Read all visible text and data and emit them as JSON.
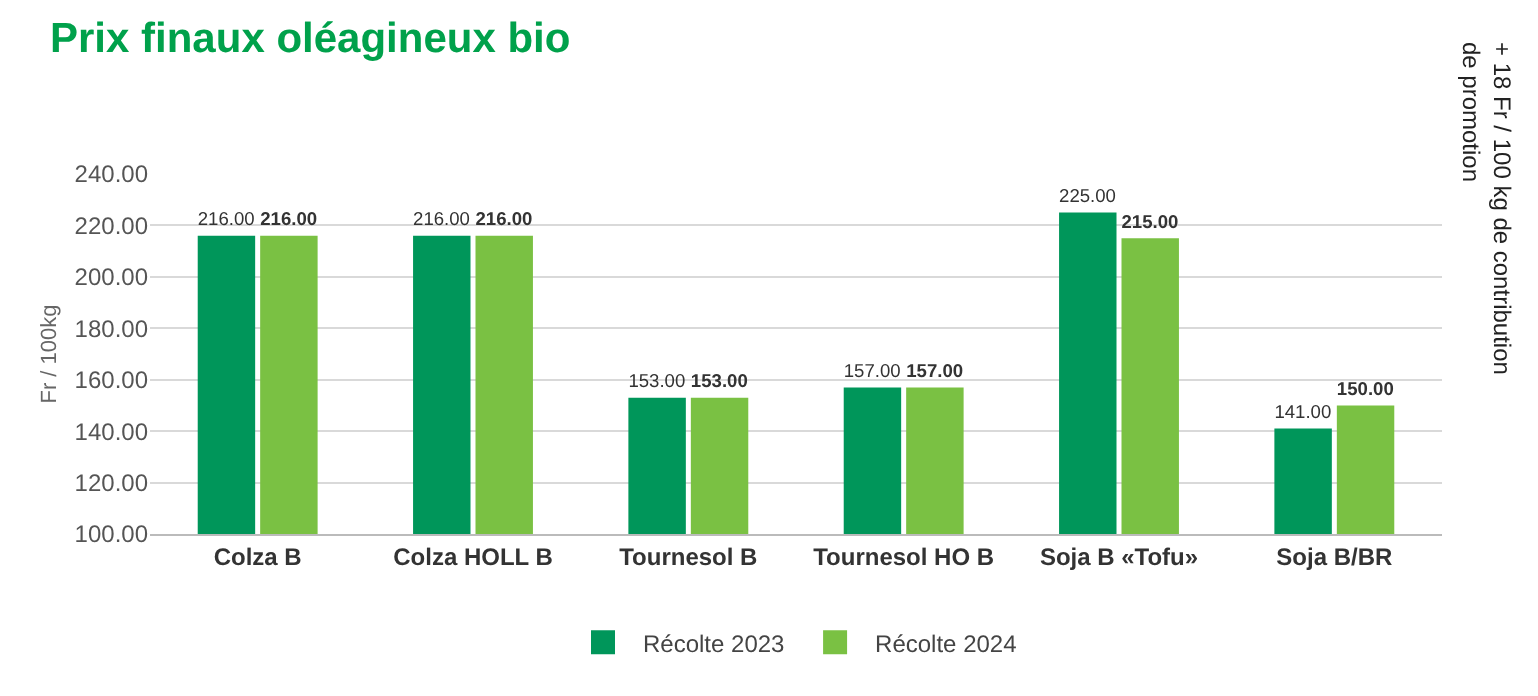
{
  "chart_data": {
    "type": "bar",
    "title": "Prix finaux oléagineux bio",
    "ylabel": "Fr / 100kg",
    "categories": [
      "Colza B",
      "Colza HOLL B",
      "Tournesol B",
      "Tournesol HO B",
      "Soja B «Tofu»",
      "Soja B/BR"
    ],
    "series": [
      {
        "name": "Récolte 2023",
        "color": "#00965a",
        "values": [
          216,
          216,
          153,
          157,
          225,
          141
        ],
        "value_labels": [
          "216.00",
          "216.00",
          "153.00",
          "157.00",
          "225.00",
          "141.00"
        ]
      },
      {
        "name": "Récolte 2024",
        "color": "#7ac143",
        "values": [
          216,
          216,
          153,
          157,
          215,
          150
        ],
        "value_labels": [
          "216.00",
          "216.00",
          "153.00",
          "157.00",
          "215.00",
          "150.00"
        ]
      }
    ],
    "ylim": [
      100,
      240
    ],
    "yticks": [
      {
        "value": 100,
        "label": "100.00"
      },
      {
        "value": 120,
        "label": "120.00"
      },
      {
        "value": 140,
        "label": "140.00"
      },
      {
        "value": 160,
        "label": "160.00"
      },
      {
        "value": 180,
        "label": "180.00"
      },
      {
        "value": 200,
        "label": "200.00"
      },
      {
        "value": 220,
        "label": "220.00"
      },
      {
        "value": 240,
        "label": "240.00"
      }
    ],
    "grid": "y",
    "legend": "bottom",
    "annotations": [
      "+ 18 Fr / 100 kg de contribution\nde promotion"
    ]
  }
}
